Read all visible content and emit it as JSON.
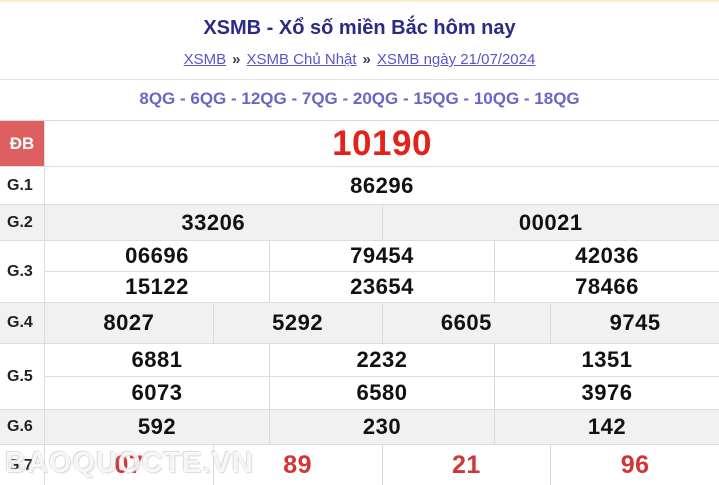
{
  "page": {
    "title": "XSMB - Xổ số miền Bắc hôm nay"
  },
  "breadcrumb": {
    "separator": "»",
    "items": [
      {
        "label": "XSMB"
      },
      {
        "label": "XSMB Chủ Nhật"
      },
      {
        "label": "XSMB ngày 21/07/2024"
      }
    ]
  },
  "station_bar": {
    "separator": " - ",
    "items": [
      "8QG",
      "6QG",
      "12QG",
      "7QG",
      "20QG",
      "15QG",
      "10QG",
      "18QG"
    ]
  },
  "results": {
    "rows": [
      {
        "key": "db",
        "label": "ĐB",
        "highlight": true,
        "striped": false,
        "lines": [
          [
            "10190"
          ]
        ]
      },
      {
        "key": "g1",
        "label": "G.1",
        "highlight": false,
        "striped": false,
        "lines": [
          [
            "86296"
          ]
        ]
      },
      {
        "key": "g2",
        "label": "G.2",
        "highlight": false,
        "striped": true,
        "lines": [
          [
            "33206",
            "00021"
          ]
        ]
      },
      {
        "key": "g3",
        "label": "G.3",
        "highlight": false,
        "striped": false,
        "lines": [
          [
            "06696",
            "79454",
            "42036"
          ],
          [
            "15122",
            "23654",
            "78466"
          ]
        ]
      },
      {
        "key": "g4",
        "label": "G.4",
        "highlight": false,
        "striped": true,
        "lines": [
          [
            "8027",
            "5292",
            "6605",
            "9745"
          ]
        ]
      },
      {
        "key": "g5",
        "label": "G.5",
        "highlight": false,
        "striped": false,
        "lines": [
          [
            "6881",
            "2232",
            "1351"
          ],
          [
            "6073",
            "6580",
            "3976"
          ]
        ]
      },
      {
        "key": "g6",
        "label": "G.6",
        "highlight": false,
        "striped": true,
        "lines": [
          [
            "592",
            "230",
            "142"
          ]
        ]
      },
      {
        "key": "g7",
        "label": "G.7",
        "highlight": false,
        "striped": false,
        "lines": [
          [
            "07",
            "89",
            "21",
            "96"
          ]
        ]
      }
    ]
  },
  "watermark": {
    "text": "BAOQUOCTE.VN"
  },
  "colors": {
    "title": "#2b2b85",
    "breadcrumb_link": "#5b54c9",
    "station_text": "#6a66c4",
    "special_label_bg": "#dd5f5f",
    "special_value": "#e2231a",
    "g7_value": "#d23535",
    "striped_row_bg": "#f1f1f1",
    "border": "#dcdcdc",
    "top_edge": "#faf0c8"
  }
}
